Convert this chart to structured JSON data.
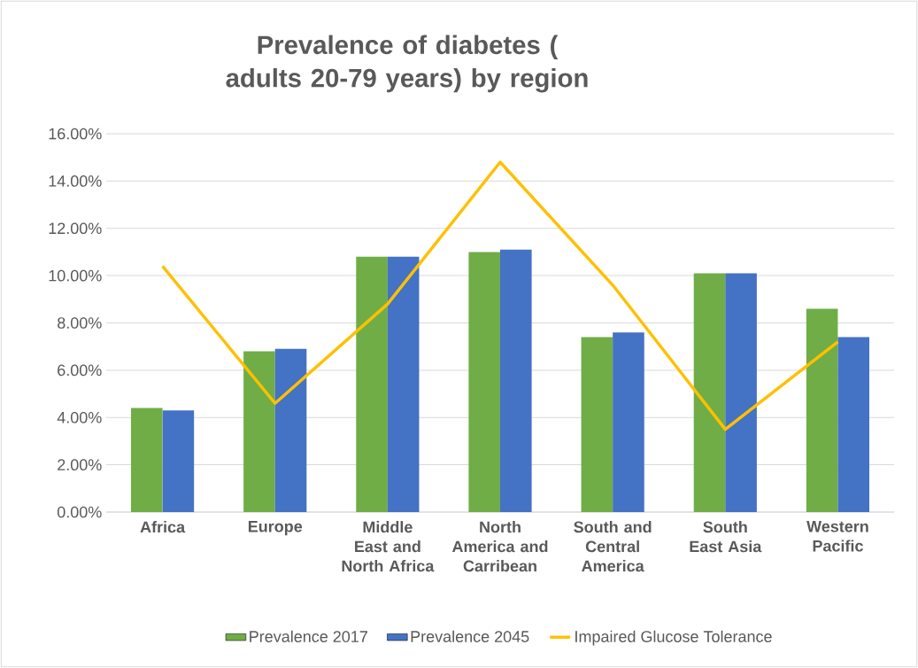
{
  "chart_data": {
    "type": "bar",
    "title": "Prevalence of diabetes ( adults 20-79 years) by region",
    "categories": [
      "Africa",
      "Europe",
      "Middle East and North Africa",
      "North America and Carribean",
      "South and Central America",
      "South East Asia",
      "Western Pacific"
    ],
    "series": [
      {
        "name": "Prevalence 2017",
        "color": "#70ad47",
        "values": [
          4.4,
          6.8,
          10.8,
          11.0,
          7.4,
          10.1,
          8.6
        ]
      },
      {
        "name": "Prevalence 2045",
        "color": "#4472c4",
        "values": [
          4.3,
          6.9,
          10.8,
          11.1,
          7.6,
          10.1,
          7.4
        ]
      },
      {
        "name": "Impaired Glucose Tolerance",
        "color": "#ffc000",
        "type": "line",
        "values": [
          10.4,
          4.6,
          8.8,
          14.8,
          9.6,
          3.5,
          7.2
        ]
      }
    ],
    "ylim": [
      0,
      16
    ],
    "yticks": [
      {
        "value": 0,
        "label": "0.00%"
      },
      {
        "value": 2,
        "label": "2.00%"
      },
      {
        "value": 4,
        "label": "4.00%"
      },
      {
        "value": 6,
        "label": "6.00%"
      },
      {
        "value": 8,
        "label": "8.00%"
      },
      {
        "value": 10,
        "label": "10.00%"
      },
      {
        "value": 12,
        "label": "12.00%"
      },
      {
        "value": 14,
        "label": "14.00%"
      },
      {
        "value": 16,
        "label": "16.00%"
      }
    ],
    "grid": "y",
    "legend": "bottom"
  }
}
